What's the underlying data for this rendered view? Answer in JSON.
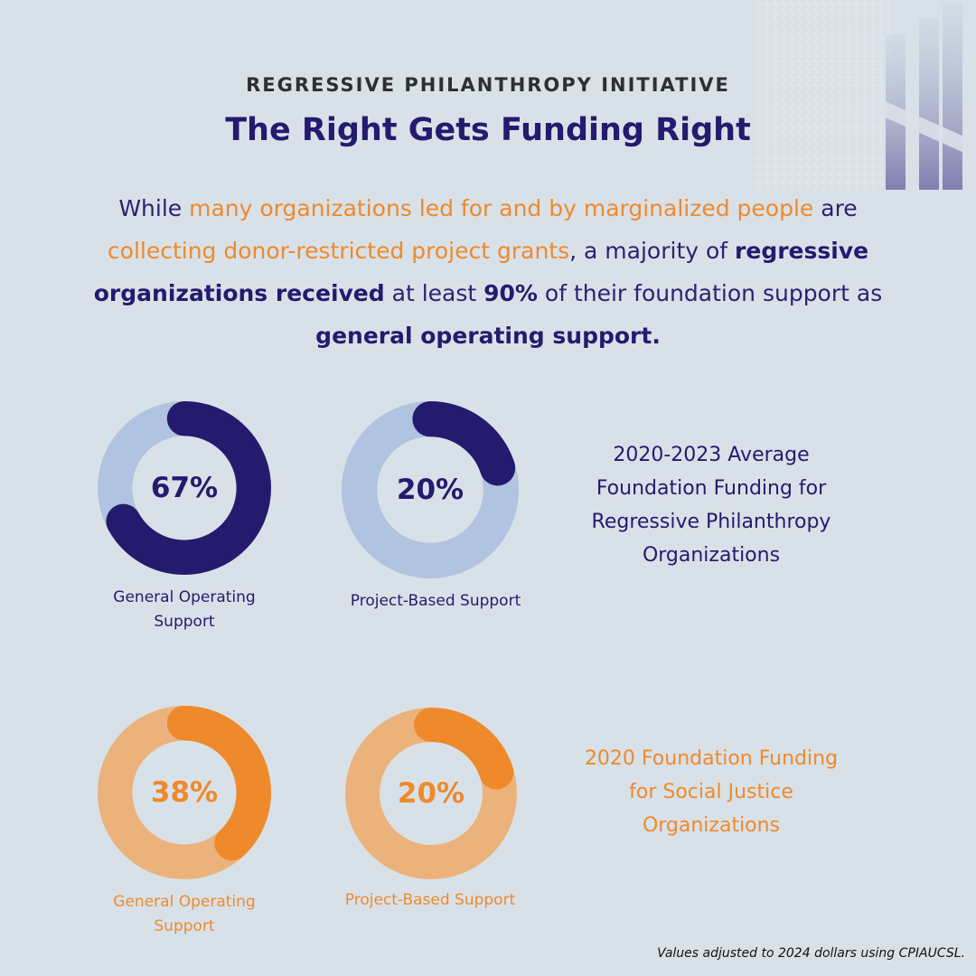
{
  "header": {
    "eyebrow": "REGRESSIVE PHILANTHROPY INITIATIVE",
    "title": "The Right Gets Funding Right"
  },
  "intro": {
    "p1": "While ",
    "p2": "many organizations led for and by marginalized people",
    "p3": " are ",
    "p4": "collecting donor-restricted project grants",
    "p5": ", a majority of ",
    "p6": "regressive organizations received",
    "p7": " at least ",
    "p8": "90%",
    "p9": " of their foundation support as ",
    "p10": "general operating support."
  },
  "colors": {
    "navy": "#241a6e",
    "navy_track": "#b0c4e1",
    "orange": "#ee8a2c",
    "orange_track": "#ecb27b",
    "background": "#d9e1e8"
  },
  "chart_data": [
    {
      "type": "pie",
      "title": "2020-2023 Average Foundation Funding for Regressive Philanthropy Organizations",
      "series": [
        {
          "name": "General Operating Support",
          "value": 67,
          "display": "67%"
        },
        {
          "name": "Project-Based Support",
          "value": 20,
          "display": "20%"
        }
      ]
    },
    {
      "type": "pie",
      "title": "2020 Foundation Funding for Social Justice Organizations",
      "series": [
        {
          "name": "General Operating Support",
          "value": 38,
          "display": "38%"
        },
        {
          "name": "Project-Based Support",
          "value": 20,
          "display": "20%"
        }
      ]
    }
  ],
  "footnote": "Values adjusted to 2024 dollars using CPIAUCSL."
}
